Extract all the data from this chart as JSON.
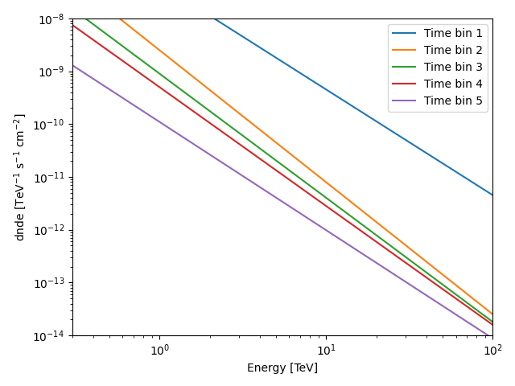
{
  "title": "",
  "xlabel": "Energy [TeV]",
  "xlim": [
    0.3,
    100
  ],
  "ylim": [
    1e-14,
    1e-08
  ],
  "series": [
    {
      "label": "Time bin 1",
      "color": "#1f77b4",
      "amplitude": 4.5e-08,
      "index": 2.0
    },
    {
      "label": "Time bin 2",
      "color": "#ff7f0e",
      "amplitude": 2.5e-09,
      "index": 2.5
    },
    {
      "label": "Time bin 3",
      "color": "#2ca02c",
      "amplitude": 9e-10,
      "index": 2.35
    },
    {
      "label": "Time bin 4",
      "color": "#d62728",
      "amplitude": 5e-10,
      "index": 2.25
    },
    {
      "label": "Time bin 5",
      "color": "#9467bd",
      "amplitude": 1.1e-10,
      "index": 2.05
    }
  ],
  "legend_loc": "upper right",
  "figsize": [
    6.4,
    4.8
  ],
  "dpi": 100
}
